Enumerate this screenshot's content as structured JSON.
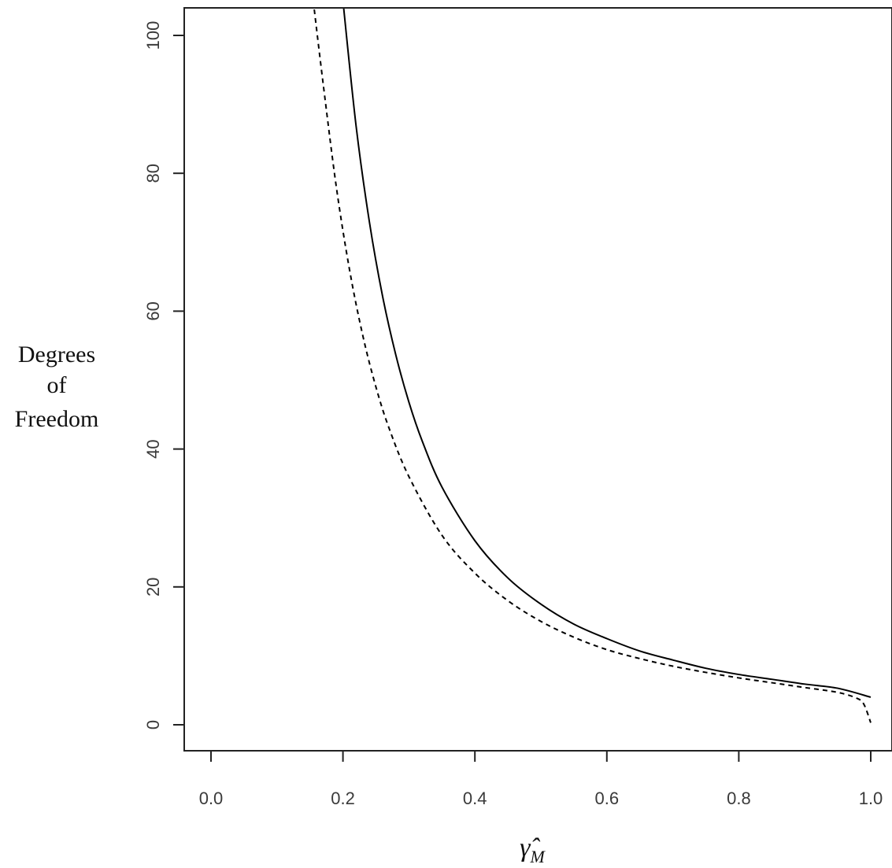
{
  "chart_data": {
    "type": "line",
    "title": "",
    "xlabel": {
      "symbol": "γ̂",
      "subscript": "M"
    },
    "ylabel_lines": [
      "Degrees",
      "of",
      "Freedom"
    ],
    "xlim": [
      0,
      1
    ],
    "ylim": [
      0,
      100
    ],
    "x_ticks": [
      "0.0",
      "0.2",
      "0.4",
      "0.6",
      "0.8",
      "1.0"
    ],
    "y_ticks": [
      "0",
      "20",
      "40",
      "60",
      "80",
      "100"
    ],
    "grid": false,
    "legend": null,
    "series": [
      {
        "line_style": "solid",
        "color": "#000000",
        "points": [
          [
            0.2,
            105
          ],
          [
            0.22,
            86.8
          ],
          [
            0.24,
            73.0
          ],
          [
            0.26,
            62.2
          ],
          [
            0.28,
            53.7
          ],
          [
            0.3,
            46.8
          ],
          [
            0.32,
            41.2
          ],
          [
            0.35,
            34.5
          ],
          [
            0.4,
            26.7
          ],
          [
            0.45,
            21.3
          ],
          [
            0.5,
            17.5
          ],
          [
            0.55,
            14.6
          ],
          [
            0.6,
            12.5
          ],
          [
            0.65,
            10.7
          ],
          [
            0.7,
            9.4
          ],
          [
            0.75,
            8.2
          ],
          [
            0.8,
            7.3
          ],
          [
            0.85,
            6.6
          ],
          [
            0.9,
            5.9
          ],
          [
            0.95,
            5.3
          ],
          [
            1.0,
            4.0
          ]
        ]
      },
      {
        "line_style": "dashed",
        "color": "#000000",
        "points": [
          [
            0.155,
            105
          ],
          [
            0.17,
            93.0
          ],
          [
            0.19,
            78.0
          ],
          [
            0.21,
            66.0
          ],
          [
            0.23,
            56.5
          ],
          [
            0.25,
            49.0
          ],
          [
            0.27,
            43.0
          ],
          [
            0.3,
            36.0
          ],
          [
            0.35,
            27.5
          ],
          [
            0.4,
            22.0
          ],
          [
            0.45,
            18.0
          ],
          [
            0.5,
            15.0
          ],
          [
            0.55,
            12.7
          ],
          [
            0.6,
            10.9
          ],
          [
            0.65,
            9.6
          ],
          [
            0.7,
            8.5
          ],
          [
            0.75,
            7.6
          ],
          [
            0.8,
            6.8
          ],
          [
            0.85,
            6.1
          ],
          [
            0.9,
            5.4
          ],
          [
            0.95,
            4.7
          ],
          [
            0.98,
            3.8
          ],
          [
            0.99,
            2.9
          ],
          [
            1.0,
            0.3
          ]
        ]
      }
    ]
  }
}
